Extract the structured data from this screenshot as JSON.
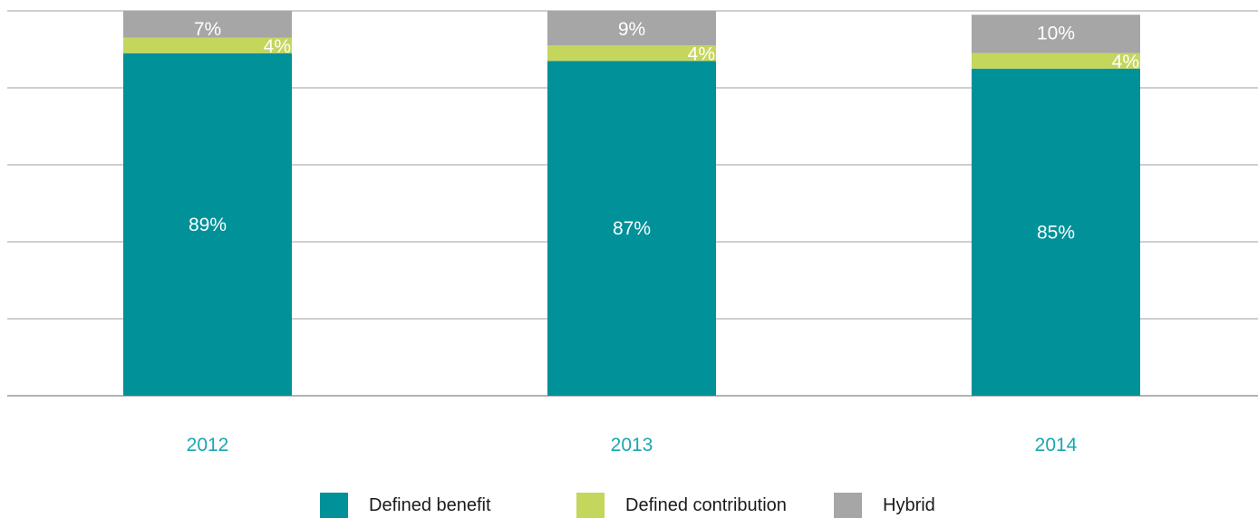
{
  "chart_data": {
    "type": "bar",
    "stacked": true,
    "categories": [
      "2012",
      "2013",
      "2014"
    ],
    "series": [
      {
        "name": "Defined benefit",
        "values": [
          89,
          87,
          85
        ],
        "labels": [
          "89%",
          "87%",
          "85%"
        ],
        "color": "#009199"
      },
      {
        "name": "Defined contribution",
        "values": [
          4,
          4,
          4
        ],
        "labels": [
          "4%",
          "4%",
          "4%"
        ],
        "color": "#c5d65c"
      },
      {
        "name": "Hybrid",
        "values": [
          7,
          9,
          10
        ],
        "labels": [
          "7%",
          "9%",
          "10%"
        ],
        "color": "#a6a6a6"
      }
    ],
    "title": "",
    "xlabel": "",
    "ylabel": "",
    "ylim": [
      0,
      100
    ],
    "y_ticks_labeled": false,
    "grid": true,
    "legend_position": "bottom",
    "category_label_color": "#1aa7b0",
    "value_label_color": "#ffffff"
  }
}
